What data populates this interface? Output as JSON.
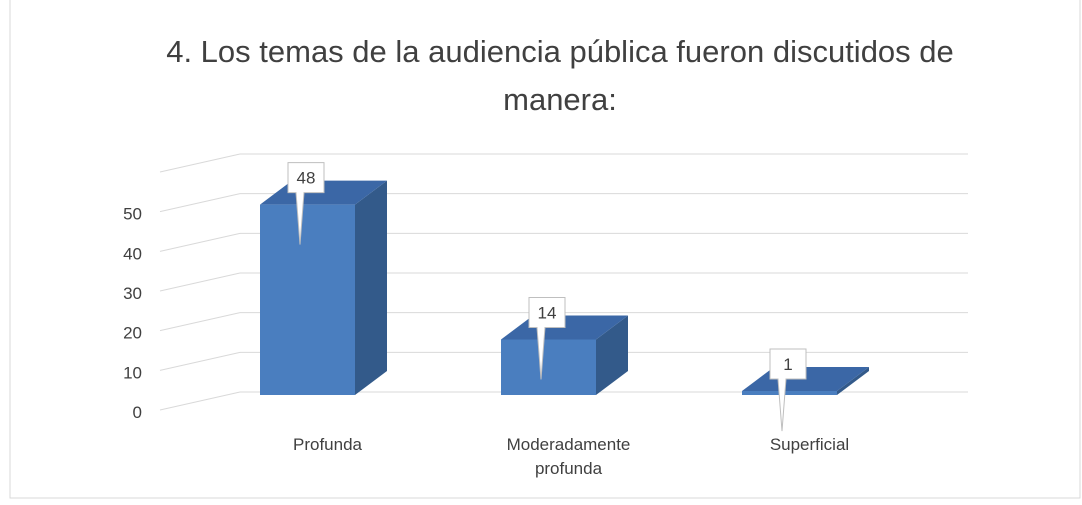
{
  "chart_data": {
    "type": "bar3d",
    "title": "4. Los temas de la audiencia pública fueron discutidos de manera:",
    "categories": [
      "Profunda",
      "Moderadamente profunda",
      "Superficial"
    ],
    "values": [
      48,
      14,
      1
    ],
    "color": "#4a7ebf",
    "ylim": [
      0,
      60
    ],
    "yticks": [
      0,
      10,
      20,
      30,
      40,
      50
    ],
    "grid": true
  }
}
